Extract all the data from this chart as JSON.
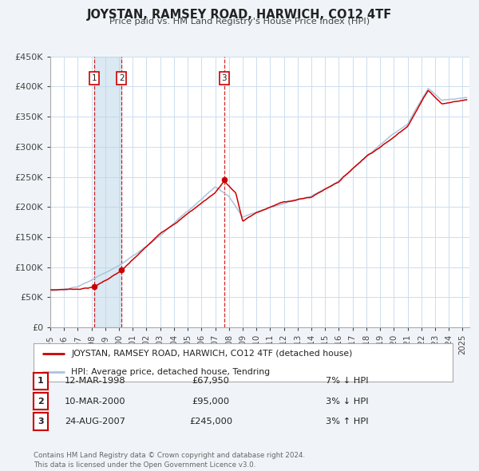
{
  "title": "JOYSTAN, RAMSEY ROAD, HARWICH, CO12 4TF",
  "subtitle": "Price paid vs. HM Land Registry's House Price Index (HPI)",
  "ylim": [
    0,
    450000
  ],
  "yticks": [
    0,
    50000,
    100000,
    150000,
    200000,
    250000,
    300000,
    350000,
    400000,
    450000
  ],
  "ytick_labels": [
    "£0",
    "£50K",
    "£100K",
    "£150K",
    "£200K",
    "£250K",
    "£300K",
    "£350K",
    "£400K",
    "£450K"
  ],
  "xlim_start": 1995.0,
  "xlim_end": 2025.5,
  "sale_color": "#cc0000",
  "hpi_color": "#aac4dd",
  "background_color": "#f0f4f8",
  "grid_color": "#ccddee",
  "sale_points": [
    {
      "year": 1998.19,
      "value": 67950,
      "label": "1"
    },
    {
      "year": 2000.19,
      "value": 95000,
      "label": "2"
    },
    {
      "year": 2007.65,
      "value": 245000,
      "label": "3"
    }
  ],
  "legend_sale_label": "JOYSTAN, RAMSEY ROAD, HARWICH, CO12 4TF (detached house)",
  "legend_hpi_label": "HPI: Average price, detached house, Tendring",
  "table_rows": [
    {
      "num": "1",
      "date": "12-MAR-1998",
      "price": "£67,950",
      "hpi": "7% ↓ HPI"
    },
    {
      "num": "2",
      "date": "10-MAR-2000",
      "price": "£95,000",
      "hpi": "3% ↓ HPI"
    },
    {
      "num": "3",
      "date": "24-AUG-2007",
      "price": "£245,000",
      "hpi": "3% ↑ HPI"
    }
  ],
  "footer": "Contains HM Land Registry data © Crown copyright and database right 2024.\nThis data is licensed under the Open Government Licence v3.0.",
  "shade_start": 1998.19,
  "shade_end": 2000.19
}
